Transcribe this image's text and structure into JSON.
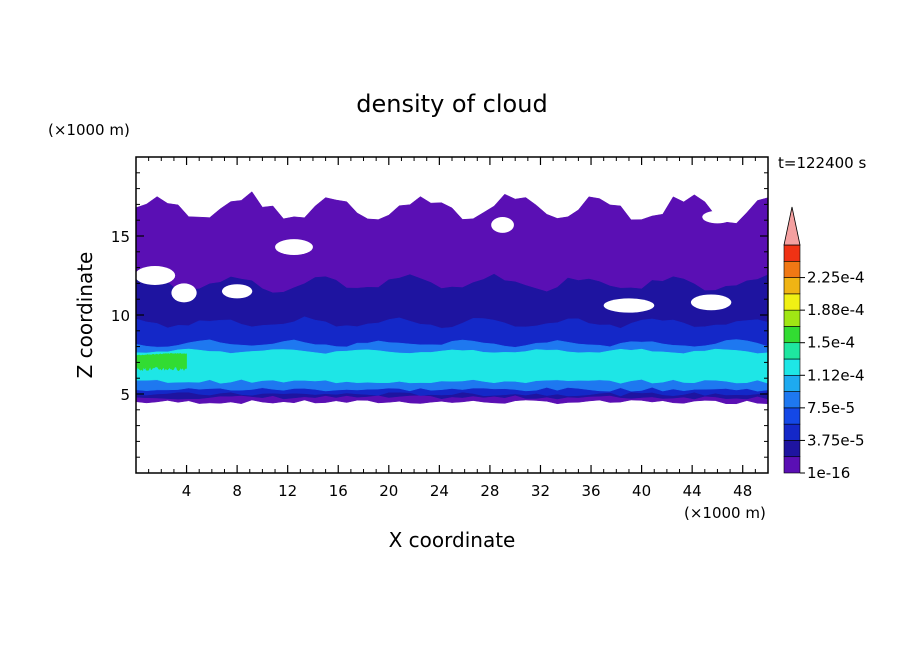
{
  "chart_data": {
    "type": "heatmap",
    "title": "density of cloud",
    "xlabel": "X coordinate",
    "ylabel": "Z coordinate",
    "x_unit": "(×1000 m)",
    "y_unit": "(×1000 m)",
    "time_label": "t=122400 s",
    "xlim": [
      0,
      50
    ],
    "ylim": [
      0,
      20
    ],
    "x_ticks": [
      4,
      8,
      12,
      16,
      20,
      24,
      28,
      32,
      36,
      40,
      44,
      48
    ],
    "y_ticks": [
      5,
      10,
      15
    ],
    "grid": false,
    "legend": {
      "placement": "right",
      "labels": [
        "2.25e-4",
        "1.88e-4",
        "1.5e-4",
        "1.12e-4",
        "7.5e-5",
        "3.75e-5",
        "1e-16"
      ],
      "levels": [
        1e-16,
        1.875e-05,
        3.75e-05,
        5.625e-05,
        7.5e-05,
        9.375e-05,
        0.0001125,
        0.00013125,
        0.00015,
        0.00016875,
        0.0001875,
        0.00020625,
        0.000225,
        0.00024375
      ],
      "colors": [
        "#5a0fb4",
        "#1e14a0",
        "#1428c8",
        "#1448e6",
        "#1e78f0",
        "#1eaaf0",
        "#1ee6e6",
        "#1ee6a0",
        "#32dc32",
        "#a0e614",
        "#f0f014",
        "#f0b414",
        "#f07814",
        "#f03214"
      ],
      "overflow_color": "#f4a0a0"
    },
    "layers": [
      {
        "level": "1e-16",
        "x_range": [
          0,
          50
        ],
        "z_bottom": 4.5,
        "z_top": 16.8
      },
      {
        "level": "1.875e-5",
        "x_range": [
          0,
          50
        ],
        "z_bottom": 4.8,
        "z_top": 12.0
      },
      {
        "level": "3.75e-5",
        "x_range": [
          0,
          50
        ],
        "z_bottom": 5.0,
        "z_top": 9.5
      },
      {
        "level": "7.5e-5",
        "x_range": [
          0,
          50
        ],
        "z_bottom": 5.3,
        "z_top": 8.2
      },
      {
        "level": "1.12e-4",
        "x_range": [
          0,
          50
        ],
        "z_bottom": 5.8,
        "z_top": 7.7
      },
      {
        "level": "1.5e-4",
        "x_range": [
          0,
          4
        ],
        "z_bottom": 6.6,
        "z_top": 7.5
      }
    ]
  }
}
